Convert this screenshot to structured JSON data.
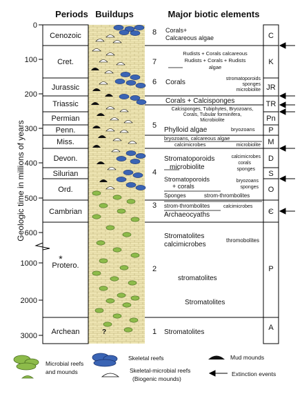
{
  "headers": {
    "periods": "Periods",
    "buildups": "Buildups",
    "biotic": "Major biotic elements"
  },
  "y_axis": {
    "label": "Geologic time in millions of years",
    "ticks": [
      "0",
      "100",
      "200",
      "300",
      "400",
      "500",
      "600",
      "1000",
      "2000",
      "3000"
    ]
  },
  "periods": [
    {
      "name": "Cenozoic",
      "code": "C"
    },
    {
      "name": "Cret.",
      "code": "K"
    },
    {
      "name": "Jurassic",
      "code": "JR"
    },
    {
      "name": "Triassic",
      "code": "TR"
    },
    {
      "name": "Permian",
      "code": "Pn"
    },
    {
      "name": "Penn.",
      "code": "P"
    },
    {
      "name": "Miss.",
      "code": "M"
    },
    {
      "name": "Devon.",
      "code": "D"
    },
    {
      "name": "Silurian",
      "code": "S"
    },
    {
      "name": "Ord.",
      "code": "O"
    },
    {
      "name": "Cambrian",
      "code": "Є"
    },
    {
      "name": "Protero.",
      "code": "P"
    },
    {
      "name": "Archean",
      "code": "A"
    }
  ],
  "protero_star": "*",
  "archean_query": "?",
  "episodes": [
    "8",
    "7",
    "6",
    "5",
    "4",
    "3",
    "2",
    "1"
  ],
  "biotic": {
    "ceno_1": "Corals+",
    "ceno_2": "Calcareous algae",
    "cret_1": "Rudists + Corals calcareous",
    "cret_2": "Rudists + Corals + Rudists",
    "cret_3": "algae",
    "jur_main": "Corals",
    "jur_side_1": "stromatoporoids",
    "jur_side_2": "sponges",
    "jur_side_3": "microbiolite",
    "tri_main": "Corals + Calcisponges",
    "perm_1": "Calcisponges, Tubiphytes, Bryozoans,",
    "perm_2": "Corals, Tubular forminifera,",
    "perm_3": "Microbiolite",
    "penn_main": "Phylloid algae",
    "penn_side": "bryozoans",
    "miss_1": "bryozoans, calcareous algae",
    "miss_side": "microbiolite",
    "miss_2": "calcimicrobes",
    "dev_main_1": "Stromatoporoids",
    "dev_main_2": "microbiolite",
    "dev_side_1": "calcimicrobes",
    "dev_side_2": "corals",
    "dev_side_3": "sponges",
    "ord_main_1": "Stromatoporoids",
    "ord_main_2": "+ corals",
    "ord_side_1": "bryozoans",
    "ord_side_2": "sponges",
    "camb_1": "Sponges",
    "camb_1b": "strom-thrombolites",
    "camb_2": "strom-thrombolites",
    "camb_2b": "calcimicrobes",
    "camb_3": "Archaeocyaths",
    "prot_main_1": "Stromatolites",
    "prot_main_2": "calcimicrobes",
    "prot_side": "thromobolites",
    "prot_mid": "stromatolites",
    "prot_low": "Stromatolites",
    "arch": "Stromatolites"
  },
  "legend": {
    "microbial_1": "Microbial reefs",
    "microbial_2": "and mounds",
    "skeletal": "Skeletal reefs",
    "mud": "Mud mounds",
    "skelmic_1": "Skeletal-microbial reefs",
    "skelmic_2": "(Biogenic mounds)",
    "extinction": "Extinction events"
  },
  "colors": {
    "microbial": "#8dbb4a",
    "skeletal": "#3a64b4",
    "mud": "#111111",
    "buildup_fill": "#efe6b4"
  }
}
